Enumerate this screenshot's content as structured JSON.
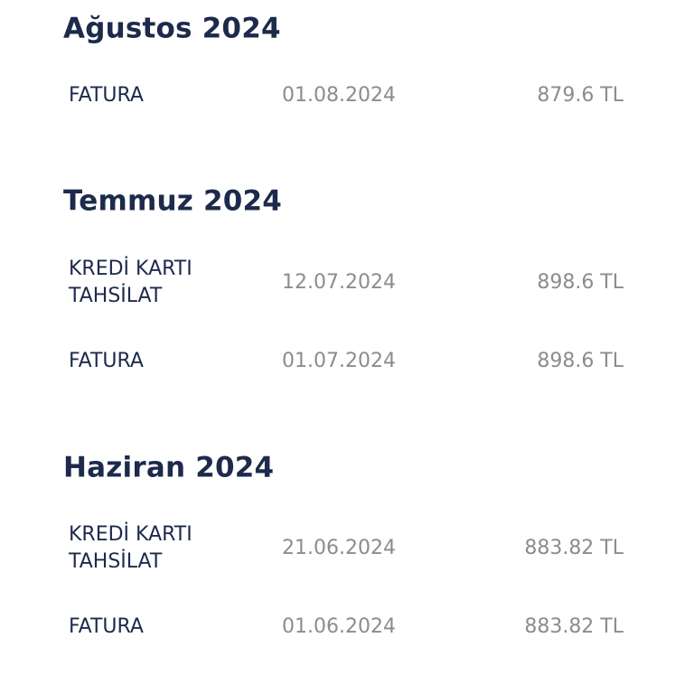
{
  "sections": [
    {
      "title": "Ağustos 2024",
      "rows": [
        {
          "label": "FATURA",
          "date": "01.08.2024",
          "amount": "879.6 TL"
        }
      ]
    },
    {
      "title": "Temmuz 2024",
      "rows": [
        {
          "label": "KREDİ KARTI\nTAHSİLAT",
          "date": "12.07.2024",
          "amount": "898.6 TL"
        },
        {
          "label": "FATURA",
          "date": "01.07.2024",
          "amount": "898.6 TL"
        }
      ]
    },
    {
      "title": "Haziran 2024",
      "rows": [
        {
          "label": "KREDİ KARTI\nTAHSİLAT",
          "date": "21.06.2024",
          "amount": "883.82 TL"
        },
        {
          "label": "FATURA",
          "date": "01.06.2024",
          "amount": "883.82 TL"
        }
      ]
    }
  ]
}
